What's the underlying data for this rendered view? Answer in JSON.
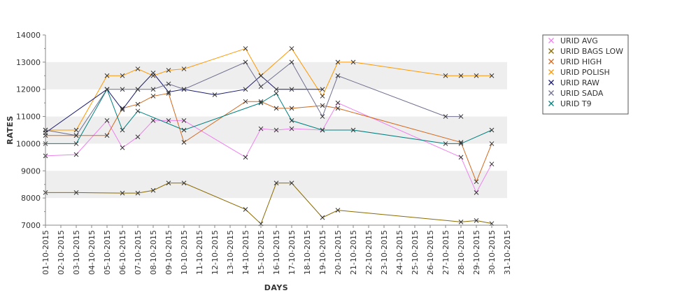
{
  "chart_data": {
    "type": "line",
    "xlabel": "DAYS",
    "ylabel": "RATES",
    "ylim": [
      7000,
      14000
    ],
    "y_ticks": [
      7000,
      8000,
      9000,
      10000,
      11000,
      12000,
      13000,
      14000
    ],
    "x_tick_labels": [
      "01-10-2015",
      "02-10-2015",
      "03-10-2015",
      "04-10-2015",
      "05-10-2015",
      "06-10-2015",
      "07-10-2015",
      "08-10-2015",
      "09-10-2015",
      "10-10-2015",
      "11-10-2015",
      "12-10-2015",
      "13-10-2015",
      "14-10-2015",
      "15-10-2015",
      "16-10-2015",
      "17-10-2015",
      "18-10-2015",
      "19-10-2015",
      "20-10-2015",
      "21-10-2015",
      "22-10-2015",
      "23-10-2015",
      "24-10-2015",
      "25-10-2015",
      "26-10-2015",
      "27-10-2015",
      "28-10-2015",
      "29-10-2015",
      "30-10-2015",
      "31-10-2015"
    ],
    "grid": "alternating horizontal bands",
    "legend_position": "top-right",
    "series": [
      {
        "name": "URID AVG",
        "color": "#ee82ee",
        "x": [
          "01-10-2015",
          "03-10-2015",
          "05-10-2015",
          "06-10-2015",
          "07-10-2015",
          "08-10-2015",
          "09-10-2015",
          "10-10-2015",
          "14-10-2015",
          "15-10-2015",
          "16-10-2015",
          "17-10-2015",
          "19-10-2015",
          "20-10-2015",
          "28-10-2015",
          "29-10-2015",
          "30-10-2015"
        ],
        "values": [
          9550,
          9600,
          10850,
          9850,
          10250,
          10850,
          10850,
          10850,
          9500,
          10550,
          10500,
          10550,
          10500,
          11500,
          9500,
          8200,
          9250
        ]
      },
      {
        "name": "URID BAGS LOW",
        "color": "#8b6a00",
        "x": [
          "01-10-2015",
          "03-10-2015",
          "06-10-2015",
          "07-10-2015",
          "08-10-2015",
          "09-10-2015",
          "10-10-2015",
          "14-10-2015",
          "15-10-2015",
          "16-10-2015",
          "17-10-2015",
          "19-10-2015",
          "20-10-2015",
          "28-10-2015",
          "29-10-2015",
          "30-10-2015"
        ],
        "values": [
          8200,
          8200,
          8180,
          8180,
          8280,
          8550,
          8550,
          7580,
          7050,
          8550,
          8550,
          7280,
          7550,
          7120,
          7170,
          7060
        ]
      },
      {
        "name": "URID HIGH",
        "color": "#d2691e",
        "x": [
          "01-10-2015",
          "03-10-2015",
          "05-10-2015",
          "06-10-2015",
          "07-10-2015",
          "08-10-2015",
          "09-10-2015",
          "10-10-2015",
          "14-10-2015",
          "15-10-2015",
          "16-10-2015",
          "17-10-2015",
          "19-10-2015",
          "20-10-2015",
          "28-10-2015",
          "29-10-2015",
          "30-10-2015"
        ],
        "values": [
          10300,
          10300,
          10300,
          11300,
          11450,
          11750,
          11850,
          10050,
          11550,
          11550,
          11300,
          11300,
          11400,
          11300,
          10050,
          8600,
          10000
        ]
      },
      {
        "name": "URID POLISH",
        "color": "#ff9900",
        "x": [
          "01-10-2015",
          "03-10-2015",
          "05-10-2015",
          "06-10-2015",
          "07-10-2015",
          "08-10-2015",
          "09-10-2015",
          "10-10-2015",
          "14-10-2015",
          "15-10-2015",
          "17-10-2015",
          "19-10-2015",
          "20-10-2015",
          "21-10-2015",
          "27-10-2015",
          "28-10-2015",
          "29-10-2015",
          "30-10-2015"
        ],
        "values": [
          10500,
          10500,
          12500,
          12500,
          12750,
          12500,
          12700,
          12750,
          13500,
          12500,
          13500,
          11750,
          13000,
          13000,
          12500,
          12500,
          12500,
          12500
        ]
      },
      {
        "name": "URID RAW",
        "color": "#191970",
        "x": [
          "01-10-2015",
          "05-10-2015",
          "06-10-2015",
          "07-10-2015",
          "08-10-2015",
          "09-10-2015",
          "10-10-2015",
          "12-10-2015",
          "14-10-2015",
          "15-10-2015",
          "16-10-2015",
          "17-10-2015",
          "19-10-2015"
        ],
        "values": [
          10400,
          12000,
          11250,
          12000,
          12600,
          11900,
          12000,
          11800,
          12000,
          12500,
          12000,
          12000,
          12000
        ]
      },
      {
        "name": "URID SADA",
        "color": "#707090",
        "x": [
          "01-10-2015",
          "03-10-2015",
          "05-10-2015",
          "06-10-2015",
          "07-10-2015",
          "08-10-2015",
          "09-10-2015",
          "10-10-2015",
          "14-10-2015",
          "15-10-2015",
          "17-10-2015",
          "19-10-2015",
          "20-10-2015",
          "27-10-2015",
          "28-10-2015"
        ],
        "values": [
          10500,
          10300,
          12000,
          12000,
          12000,
          12000,
          12200,
          12000,
          13000,
          12100,
          13000,
          11000,
          12500,
          11000,
          11000
        ]
      },
      {
        "name": "URID T9",
        "color": "#008080",
        "x": [
          "01-10-2015",
          "03-10-2015",
          "05-10-2015",
          "06-10-2015",
          "07-10-2015",
          "10-10-2015",
          "15-10-2015",
          "16-10-2015",
          "17-10-2015",
          "19-10-2015",
          "21-10-2015",
          "27-10-2015",
          "28-10-2015",
          "30-10-2015"
        ],
        "values": [
          10000,
          10000,
          12000,
          10500,
          11200,
          10500,
          11500,
          11850,
          10850,
          10500,
          10500,
          10000,
          10000,
          10500
        ]
      }
    ]
  }
}
